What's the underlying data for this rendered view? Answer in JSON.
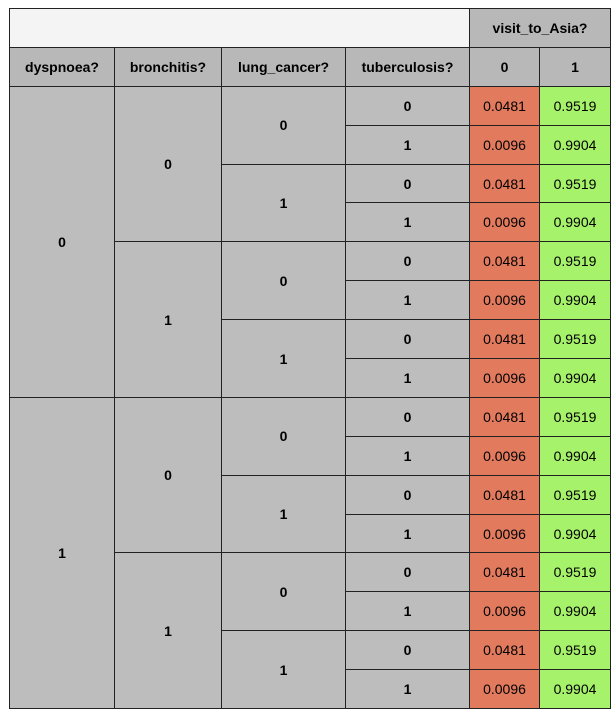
{
  "table": {
    "target_variable": "visit_to_Asia?",
    "parent_headers": [
      "dyspnoea?",
      "bronchitis?",
      "lung_cancer?",
      "tuberculosis?"
    ],
    "target_states": [
      "0",
      "1"
    ],
    "rows": [
      {
        "dyspnoea": "0",
        "bronchitis": "0",
        "lung_cancer": "0",
        "tuberculosis": "0",
        "p0": "0.0481",
        "p1": "0.9519"
      },
      {
        "dyspnoea": "0",
        "bronchitis": "0",
        "lung_cancer": "0",
        "tuberculosis": "1",
        "p0": "0.0096",
        "p1": "0.9904"
      },
      {
        "dyspnoea": "0",
        "bronchitis": "0",
        "lung_cancer": "1",
        "tuberculosis": "0",
        "p0": "0.0481",
        "p1": "0.9519"
      },
      {
        "dyspnoea": "0",
        "bronchitis": "0",
        "lung_cancer": "1",
        "tuberculosis": "1",
        "p0": "0.0096",
        "p1": "0.9904"
      },
      {
        "dyspnoea": "0",
        "bronchitis": "1",
        "lung_cancer": "0",
        "tuberculosis": "0",
        "p0": "0.0481",
        "p1": "0.9519"
      },
      {
        "dyspnoea": "0",
        "bronchitis": "1",
        "lung_cancer": "0",
        "tuberculosis": "1",
        "p0": "0.0096",
        "p1": "0.9904"
      },
      {
        "dyspnoea": "0",
        "bronchitis": "1",
        "lung_cancer": "1",
        "tuberculosis": "0",
        "p0": "0.0481",
        "p1": "0.9519"
      },
      {
        "dyspnoea": "0",
        "bronchitis": "1",
        "lung_cancer": "1",
        "tuberculosis": "1",
        "p0": "0.0096",
        "p1": "0.9904"
      },
      {
        "dyspnoea": "1",
        "bronchitis": "0",
        "lung_cancer": "0",
        "tuberculosis": "0",
        "p0": "0.0481",
        "p1": "0.9519"
      },
      {
        "dyspnoea": "1",
        "bronchitis": "0",
        "lung_cancer": "0",
        "tuberculosis": "1",
        "p0": "0.0096",
        "p1": "0.9904"
      },
      {
        "dyspnoea": "1",
        "bronchitis": "0",
        "lung_cancer": "1",
        "tuberculosis": "0",
        "p0": "0.0481",
        "p1": "0.9519"
      },
      {
        "dyspnoea": "1",
        "bronchitis": "0",
        "lung_cancer": "1",
        "tuberculosis": "1",
        "p0": "0.0096",
        "p1": "0.9904"
      },
      {
        "dyspnoea": "1",
        "bronchitis": "1",
        "lung_cancer": "0",
        "tuberculosis": "0",
        "p0": "0.0481",
        "p1": "0.9519"
      },
      {
        "dyspnoea": "1",
        "bronchitis": "1",
        "lung_cancer": "0",
        "tuberculosis": "1",
        "p0": "0.0096",
        "p1": "0.9904"
      },
      {
        "dyspnoea": "1",
        "bronchitis": "1",
        "lung_cancer": "1",
        "tuberculosis": "0",
        "p0": "0.0481",
        "p1": "0.9519"
      },
      {
        "dyspnoea": "1",
        "bronchitis": "1",
        "lung_cancer": "1",
        "tuberculosis": "1",
        "p0": "0.0096",
        "p1": "0.9904"
      }
    ]
  },
  "colors": {
    "header_grey": "#b8b8b8",
    "cell_grey": "#bdbdbd",
    "state0_fill": "#e27a5e",
    "state1_fill": "#a6f26a"
  }
}
